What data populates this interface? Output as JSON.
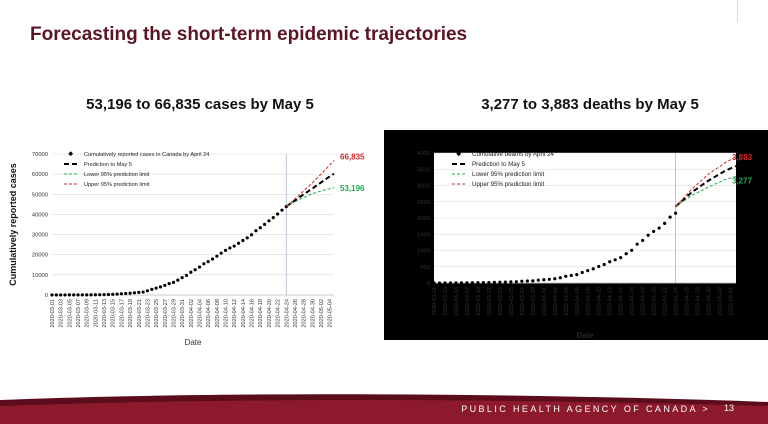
{
  "slide": {
    "title": "Forecasting the short-term epidemic trajectories",
    "footer_text": "PUBLIC HEALTH AGENCY OF CANADA >",
    "page_number": "13"
  },
  "colors": {
    "title": "#5b1626",
    "observed": "#000000",
    "prediction": "#000000",
    "lower": "#1faa4e",
    "upper": "#d62728",
    "vline": "#a9b6c9",
    "footer": "#7a1424"
  },
  "chart_data": [
    {
      "type": "line",
      "subtitle": "53,196 to 66,835 cases by May 5",
      "xlabel": "Date",
      "ylabel": "Cumulatively reported cases",
      "ylim": [
        0,
        70000
      ],
      "yticks": [
        0,
        10000,
        20000,
        30000,
        40000,
        50000,
        60000,
        70000
      ],
      "ytick_labels": [
        "0",
        "10000",
        "20000",
        "30000",
        "40000",
        "50000",
        "60000",
        "70000"
      ],
      "x_start": "2020-03-01",
      "x_end": "2020-05-05",
      "xtick_labels": [
        "2020-03-01",
        "2020-03-03",
        "2020-03-05",
        "2020-03-07",
        "2020-03-09",
        "2020-03-11",
        "2020-03-13",
        "2020-03-15",
        "2020-03-17",
        "2020-03-19",
        "2020-03-21",
        "2020-03-23",
        "2020-03-25",
        "2020-03-27",
        "2020-03-29",
        "2020-03-31",
        "2020-04-02",
        "2020-04-04",
        "2020-04-06",
        "2020-04-08",
        "2020-04-10",
        "2020-04-12",
        "2020-04-14",
        "2020-04-16",
        "2020-04-18",
        "2020-04-20",
        "2020-04-22",
        "2020-04-24",
        "2020-04-26",
        "2020-04-28",
        "2020-04-30",
        "2020-05-02",
        "2020-05-04"
      ],
      "forecast_start": "2020-04-24",
      "grid": true,
      "legend_position": "top-left",
      "annotations": {
        "upper": "66,835",
        "lower": "53,196"
      },
      "series": [
        {
          "name": "Cumulatively reported cases in Canada by April 24",
          "style": "dots",
          "x": [
            "2020-03-01",
            "2020-03-02",
            "2020-03-03",
            "2020-03-04",
            "2020-03-05",
            "2020-03-06",
            "2020-03-07",
            "2020-03-08",
            "2020-03-09",
            "2020-03-10",
            "2020-03-11",
            "2020-03-12",
            "2020-03-13",
            "2020-03-14",
            "2020-03-15",
            "2020-03-16",
            "2020-03-17",
            "2020-03-18",
            "2020-03-19",
            "2020-03-20",
            "2020-03-21",
            "2020-03-22",
            "2020-03-23",
            "2020-03-24",
            "2020-03-25",
            "2020-03-26",
            "2020-03-27",
            "2020-03-28",
            "2020-03-29",
            "2020-03-30",
            "2020-03-31",
            "2020-04-01",
            "2020-04-02",
            "2020-04-03",
            "2020-04-04",
            "2020-04-05",
            "2020-04-06",
            "2020-04-07",
            "2020-04-08",
            "2020-04-09",
            "2020-04-10",
            "2020-04-11",
            "2020-04-12",
            "2020-04-13",
            "2020-04-14",
            "2020-04-15",
            "2020-04-16",
            "2020-04-17",
            "2020-04-18",
            "2020-04-19",
            "2020-04-20",
            "2020-04-21",
            "2020-04-22",
            "2020-04-23",
            "2020-04-24"
          ],
          "values": [
            24,
            27,
            30,
            33,
            45,
            51,
            57,
            64,
            77,
            93,
            108,
            145,
            198,
            252,
            341,
            441,
            598,
            727,
            873,
            1087,
            1328,
            1469,
            2091,
            2792,
            3409,
            4043,
            4757,
            5655,
            6280,
            7398,
            8612,
            9731,
            11284,
            12519,
            13882,
            15496,
            16563,
            17897,
            19274,
            20765,
            22148,
            23318,
            24298,
            25680,
            27063,
            28379,
            29911,
            31927,
            33373,
            35056,
            36831,
            38422,
            40190,
            42110,
            43888
          ]
        },
        {
          "name": "Prediction to May 5",
          "style": "dash",
          "x": [
            "2020-04-24",
            "2020-04-27",
            "2020-04-30",
            "2020-05-03",
            "2020-05-05"
          ],
          "values": [
            43888,
            48500,
            52800,
            57400,
            60200
          ]
        },
        {
          "name": "Lower 95% prediction limit",
          "style": "dash",
          "x": [
            "2020-04-24",
            "2020-04-27",
            "2020-04-30",
            "2020-05-03",
            "2020-05-05"
          ],
          "values": [
            43888,
            47400,
            50300,
            52300,
            53196
          ]
        },
        {
          "name": "Upper 95% prediction limit",
          "style": "dash",
          "x": [
            "2020-04-24",
            "2020-04-27",
            "2020-04-30",
            "2020-05-03",
            "2020-05-05"
          ],
          "values": [
            43888,
            49700,
            55600,
            62200,
            66835
          ]
        }
      ]
    },
    {
      "type": "line",
      "subtitle": "3,277 to 3,883 deaths by May 5",
      "xlabel": "Date",
      "ylabel": "",
      "ylim": [
        0,
        4000
      ],
      "yticks": [
        0,
        500,
        1000,
        1500,
        2000,
        2500,
        3000,
        3500,
        4000
      ],
      "ytick_labels": [
        "0",
        "500",
        "1000",
        "1500",
        "2000",
        "2500",
        "3000",
        "3500",
        "4000"
      ],
      "x_start": "2020-03-11",
      "x_end": "2020-05-05",
      "xtick_labels": [
        "2020-03-11",
        "2020-03-13",
        "2020-03-15",
        "2020-03-17",
        "2020-03-19",
        "2020-03-21",
        "2020-03-23",
        "2020-03-25",
        "2020-03-27",
        "2020-03-29",
        "2020-03-31",
        "2020-04-02",
        "2020-04-04",
        "2020-04-06",
        "2020-04-08",
        "2020-04-10",
        "2020-04-12",
        "2020-04-14",
        "2020-04-16",
        "2020-04-18",
        "2020-04-20",
        "2020-04-22",
        "2020-04-24",
        "2020-04-26",
        "2020-04-28",
        "2020-04-30",
        "2020-05-02",
        "2020-05-04"
      ],
      "forecast_start": "2020-04-24",
      "grid": true,
      "legend_position": "top-left",
      "annotations": {
        "upper": "3,883",
        "lower": "3,277"
      },
      "series": [
        {
          "name": "Cumulative deaths by April 24",
          "style": "dots",
          "x": [
            "2020-03-11",
            "2020-03-12",
            "2020-03-13",
            "2020-03-14",
            "2020-03-15",
            "2020-03-16",
            "2020-03-17",
            "2020-03-18",
            "2020-03-19",
            "2020-03-20",
            "2020-03-21",
            "2020-03-22",
            "2020-03-23",
            "2020-03-24",
            "2020-03-25",
            "2020-03-26",
            "2020-03-27",
            "2020-03-28",
            "2020-03-29",
            "2020-03-30",
            "2020-03-31",
            "2020-04-01",
            "2020-04-02",
            "2020-04-03",
            "2020-04-04",
            "2020-04-05",
            "2020-04-06",
            "2020-04-07",
            "2020-04-08",
            "2020-04-09",
            "2020-04-10",
            "2020-04-11",
            "2020-04-12",
            "2020-04-13",
            "2020-04-14",
            "2020-04-15",
            "2020-04-16",
            "2020-04-17",
            "2020-04-18",
            "2020-04-19",
            "2020-04-20",
            "2020-04-21",
            "2020-04-22",
            "2020-04-23",
            "2020-04-24"
          ],
          "values": [
            1,
            1,
            1,
            1,
            1,
            4,
            5,
            8,
            9,
            12,
            13,
            19,
            24,
            27,
            36,
            39,
            55,
            61,
            65,
            89,
            101,
            114,
            131,
            161,
            206,
            233,
            258,
            323,
            381,
            435,
            510,
            569,
            653,
            714,
            780,
            900,
            1006,
            1195,
            1310,
            1470,
            1587,
            1690,
            1834,
            2028,
            2147
          ]
        },
        {
          "name": "Prediction to May 5",
          "style": "dash",
          "x": [
            "2020-04-24",
            "2020-04-27",
            "2020-04-30",
            "2020-05-03",
            "2020-05-05"
          ],
          "values": [
            2350,
            2800,
            3150,
            3450,
            3600
          ]
        },
        {
          "name": "Lower 95% prediction limit",
          "style": "dash",
          "x": [
            "2020-04-24",
            "2020-04-27",
            "2020-04-30",
            "2020-05-03",
            "2020-05-05"
          ],
          "values": [
            2350,
            2700,
            2950,
            3180,
            3277
          ]
        },
        {
          "name": "Upper 95% prediction limit",
          "style": "dash",
          "x": [
            "2020-04-24",
            "2020-04-27",
            "2020-04-30",
            "2020-05-03",
            "2020-05-05"
          ],
          "values": [
            2350,
            2900,
            3350,
            3700,
            3883
          ]
        }
      ]
    }
  ]
}
